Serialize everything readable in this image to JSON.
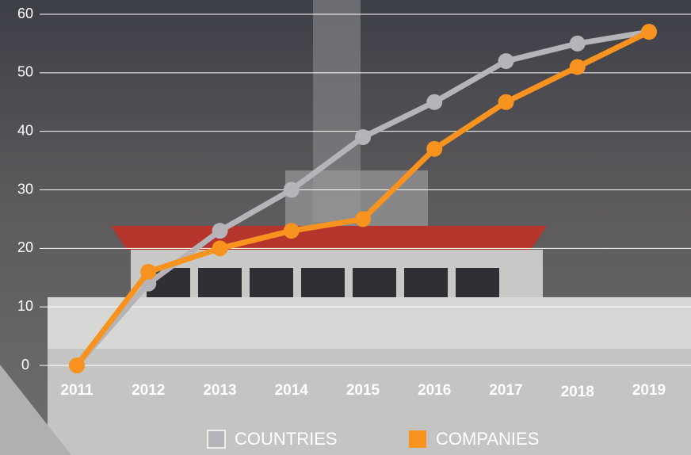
{
  "chart_data": {
    "type": "line",
    "x": [
      "2011",
      "2012",
      "2013",
      "2014",
      "2015",
      "2016",
      "2017",
      "2018",
      "2019"
    ],
    "series": [
      {
        "name": "COUNTRIES",
        "color": "#b4b4b9",
        "values": [
          0,
          14,
          23,
          30,
          39,
          45,
          52,
          55,
          57
        ]
      },
      {
        "name": "COMPANIES",
        "color": "#f7931e",
        "values": [
          0,
          16,
          20,
          23,
          25,
          37,
          45,
          51,
          57
        ]
      }
    ],
    "ylim": [
      0,
      60
    ],
    "yticks": [
      0,
      10,
      20,
      30,
      40,
      50,
      60
    ],
    "grid": true
  }
}
